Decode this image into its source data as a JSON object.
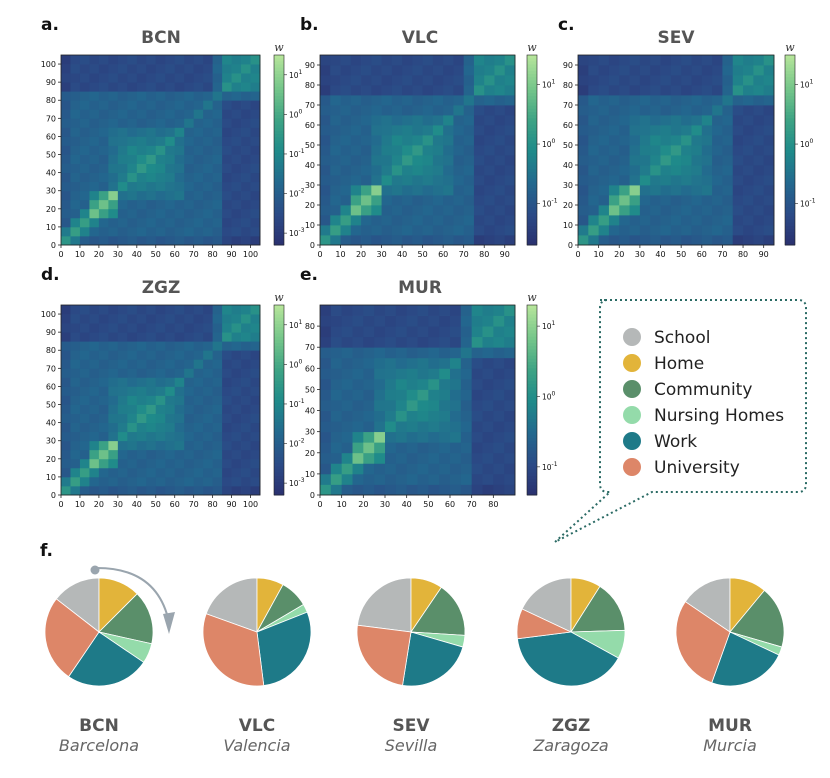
{
  "figure_labels": {
    "a": "a.",
    "b": "b.",
    "c": "c.",
    "d": "d.",
    "e": "e.",
    "f": "f."
  },
  "colorbar_label": "w",
  "colors": {
    "School": "#b5b8b8",
    "Home": "#e2b43a",
    "Community": "#5a8f6a",
    "Nursing Homes": "#94dbaa",
    "Work": "#1e7a88",
    "University": "#dd8668",
    "heatmap_low": "#2a2f6e",
    "heatmap_high": "#aee08e"
  },
  "legend": {
    "items": [
      "School",
      "Home",
      "Community",
      "Nursing Homes",
      "Work",
      "University"
    ]
  },
  "chart_data": [
    {
      "type": "heatmap",
      "title": "BCN",
      "max_age": 105,
      "tick_labels": [
        "0",
        "10",
        "20",
        "30",
        "40",
        "50",
        "60",
        "70",
        "80",
        "90",
        "100"
      ],
      "colorbar": {
        "scale": "log",
        "tick_labels": [
          "10^-3",
          "10^-2",
          "10^-1",
          "10^0",
          "10^1"
        ],
        "range": [
          "10^-3.3",
          "10^1.5"
        ]
      }
    },
    {
      "type": "heatmap",
      "title": "VLC",
      "max_age": 95,
      "x_tick_labels": [
        "0",
        "10",
        "20",
        "30",
        "40",
        "50",
        "60",
        "70",
        "80",
        "90"
      ],
      "y_tick_labels": [
        "0",
        "10",
        "20",
        "30",
        "40",
        "50",
        "60",
        "70",
        "80",
        "90"
      ],
      "colorbar": {
        "scale": "log",
        "tick_labels": [
          "10^-1",
          "10^0",
          "10^1"
        ],
        "range": [
          "10^-1.7",
          "10^1.5"
        ]
      }
    },
    {
      "type": "heatmap",
      "title": "SEV",
      "max_age": 95,
      "x_tick_labels": [
        "0",
        "10",
        "20",
        "30",
        "40",
        "50",
        "60",
        "70",
        "80",
        "90"
      ],
      "y_tick_labels": [
        "0",
        "10",
        "20",
        "30",
        "40",
        "50",
        "60",
        "70",
        "80",
        "90"
      ],
      "colorbar": {
        "scale": "log",
        "tick_labels": [
          "10^-1",
          "10^0",
          "10^1"
        ],
        "range": [
          "10^-1.7",
          "10^1.5"
        ]
      }
    },
    {
      "type": "heatmap",
      "title": "ZGZ",
      "max_age": 105,
      "tick_labels": [
        "0",
        "10",
        "20",
        "30",
        "40",
        "50",
        "60",
        "70",
        "80",
        "90",
        "100"
      ],
      "colorbar": {
        "scale": "log",
        "tick_labels": [
          "10^-3",
          "10^-2",
          "10^-1",
          "10^0",
          "10^1"
        ],
        "range": [
          "10^-3.3",
          "10^1.5"
        ]
      }
    },
    {
      "type": "heatmap",
      "title": "MUR",
      "max_age": 90,
      "x_tick_labels": [
        "0",
        "10",
        "20",
        "30",
        "40",
        "50",
        "60",
        "70",
        "80"
      ],
      "y_tick_labels": [
        "0",
        "10",
        "20",
        "30",
        "40",
        "50",
        "60",
        "70",
        "80"
      ],
      "colorbar": {
        "scale": "log",
        "tick_labels": [
          "10^-1",
          "10^0",
          "10^1"
        ],
        "range": [
          "10^-1.4",
          "10^1.3"
        ]
      }
    },
    {
      "type": "pie",
      "code": "BCN",
      "city": "Barcelona",
      "categories": [
        "School",
        "Home",
        "Community",
        "Nursing Homes",
        "Work",
        "University"
      ],
      "values": [
        0.145,
        0.125,
        0.16,
        0.06,
        0.25,
        0.26
      ]
    },
    {
      "type": "pie",
      "code": "VLC",
      "city": "Valencia",
      "categories": [
        "School",
        "Home",
        "Community",
        "Nursing Homes",
        "Work",
        "University"
      ],
      "values": [
        0.195,
        0.08,
        0.085,
        0.025,
        0.29,
        0.325
      ]
    },
    {
      "type": "pie",
      "code": "SEV",
      "city": "Sevilla",
      "categories": [
        "School",
        "Home",
        "Community",
        "Nursing Homes",
        "Work",
        "University"
      ],
      "values": [
        0.23,
        0.095,
        0.165,
        0.035,
        0.23,
        0.245
      ]
    },
    {
      "type": "pie",
      "code": "ZGZ",
      "city": "Zaragoza",
      "categories": [
        "School",
        "Home",
        "Community",
        "Nursing Homes",
        "Work",
        "University"
      ],
      "values": [
        0.18,
        0.09,
        0.155,
        0.085,
        0.4,
        0.09
      ]
    },
    {
      "type": "pie",
      "code": "MUR",
      "city": "Murcia",
      "categories": [
        "School",
        "Home",
        "Community",
        "Nursing Homes",
        "Work",
        "University"
      ],
      "values": [
        0.155,
        0.11,
        0.185,
        0.025,
        0.235,
        0.29
      ]
    }
  ]
}
